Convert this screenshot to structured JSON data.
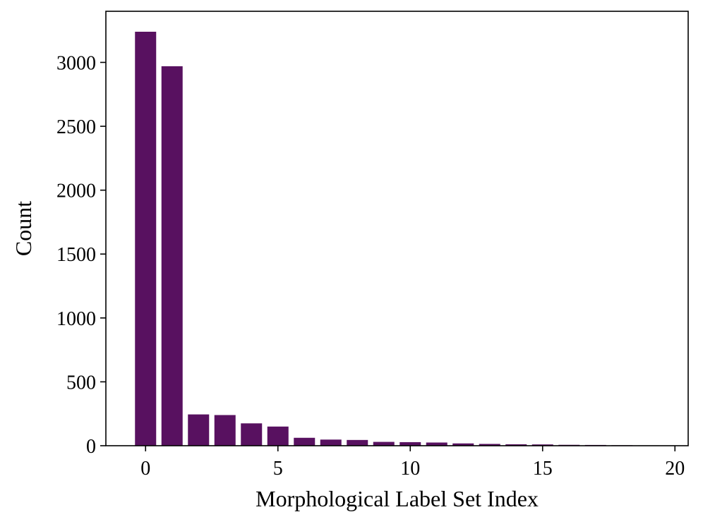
{
  "chart_data": {
    "type": "bar",
    "xlabel": "Morphological Label Set Index",
    "ylabel": "Count",
    "x": [
      0,
      1,
      2,
      3,
      4,
      5,
      6,
      7,
      8,
      9,
      10,
      11,
      12,
      13,
      14,
      15,
      16,
      17,
      18,
      19
    ],
    "values": [
      3240,
      2970,
      245,
      240,
      175,
      150,
      62,
      48,
      45,
      30,
      28,
      25,
      18,
      14,
      11,
      10,
      7,
      6,
      4,
      3
    ],
    "xlim": [
      -1.5,
      20.5
    ],
    "ylim": [
      0,
      3400
    ],
    "xticks": [
      0,
      5,
      10,
      15,
      20
    ],
    "yticks": [
      0,
      500,
      1000,
      1500,
      2000,
      2500,
      3000
    ],
    "grid": false,
    "bar_color": "#581160"
  }
}
